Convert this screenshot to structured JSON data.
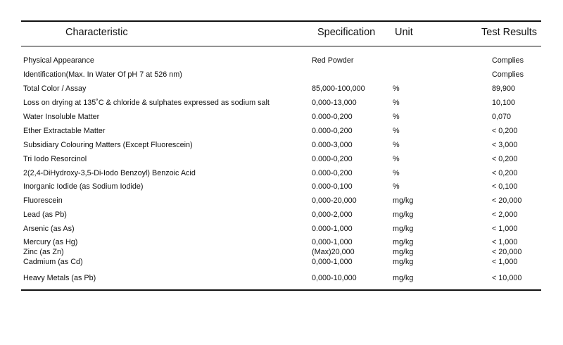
{
  "table": {
    "headers": {
      "characteristic": "Characteristic",
      "specification": "Specification",
      "unit": "Unit",
      "test_results": "Test Results"
    },
    "rows": [
      {
        "characteristic": "Physical Appearance",
        "specification": "Red Powder",
        "unit": "",
        "result": "Complies"
      },
      {
        "characteristic": "Identification(Max. In Water Of pH 7 at 526 nm)",
        "specification": "",
        "unit": "",
        "result": "Complies"
      },
      {
        "characteristic": "Total Color / Assay",
        "specification": "85,000-100,000",
        "unit": "%",
        "result": "89,900"
      },
      {
        "characteristic": "Loss on drying at 135˚C & chloride & sulphates expressed as sodium salt",
        "specification": "0,000-13,000",
        "unit": "%",
        "result": "10,100"
      },
      {
        "characteristic": "Water Insoluble Matter",
        "specification": "0.000-0,200",
        "unit": "%",
        "result": "0,070"
      },
      {
        "characteristic": "Ether Extractable Matter",
        "specification": "0.000-0,200",
        "unit": "%",
        "result": "< 0,200"
      },
      {
        "characteristic": "Subsidiary Colouring Matters (Except Fluorescein)",
        "specification": "0.000-3,000",
        "unit": "%",
        "result": "< 3,000"
      },
      {
        "characteristic": "Tri Iodo Resorcinol",
        "specification": "0.000-0,200",
        "unit": "%",
        "result": "< 0,200"
      },
      {
        "characteristic": "2(2,4-DiHydroxy-3,5-Di-Iodo Benzoyl) Benzoic Acid",
        "specification": "0.000-0,200",
        "unit": "%",
        "result": "< 0,200"
      },
      {
        "characteristic": "Inorganic Iodide (as Sodium Iodide)",
        "specification": "0.000-0,100",
        "unit": "%",
        "result": "< 0,100"
      },
      {
        "characteristic": "Fluorescein",
        "specification": "0,000-20,000",
        "unit": "mg/kg",
        "result": "< 20,000"
      },
      {
        "characteristic": "Lead (as Pb)",
        "specification": "0,000-2,000",
        "unit": "mg/kg",
        "result": "< 2,000"
      },
      {
        "characteristic": "Arsenic (as As)",
        "specification": "0.000-1,000",
        "unit": "mg/kg",
        "result": "< 1,000"
      },
      {
        "characteristic": "Mercury (as Hg)",
        "specification": "0,000-1,000",
        "unit": "mg/kg",
        "result": "< 1,000"
      },
      {
        "characteristic": "Zinc (as Zn)",
        "specification": "(Max)20,000",
        "unit": "mg/kg",
        "result": "< 20,000"
      },
      {
        "characteristic": "Cadmium (as Cd)",
        "specification": "0,000-1,000",
        "unit": "mg/kg",
        "result": "< 1,000"
      },
      {
        "characteristic": "Heavy Metals  (as Pb)",
        "specification": "0,000-10,000",
        "unit": "mg/kg",
        "result": "< 10,000"
      }
    ]
  }
}
